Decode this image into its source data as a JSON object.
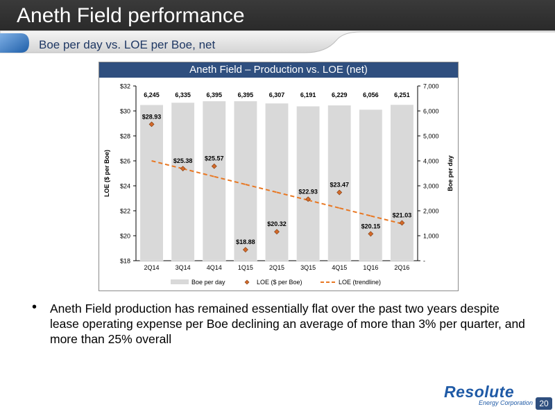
{
  "slide": {
    "title": "Aneth Field performance",
    "subtitle": "Boe per day vs. LOE per Boe, net",
    "bullet": "Aneth Field production has remained essentially flat over the past two years despite lease operating expense per Boe declining an average of more than 3% per quarter, and more than 25% overall",
    "logo": "Resolute",
    "logo_sub": "Energy Corporation",
    "page_number": "20",
    "colors": {
      "header": "#2e2e2e",
      "accent": "#2f4f7f",
      "bar": "#d9d9d9",
      "marker": "#d46a2a",
      "trend": "#e87722"
    }
  },
  "chart_data": {
    "type": "bar",
    "title": "Aneth Field – Production vs. LOE (net)",
    "categories": [
      "2Q14",
      "3Q14",
      "4Q14",
      "1Q15",
      "2Q15",
      "3Q15",
      "4Q15",
      "1Q16",
      "2Q16"
    ],
    "series": [
      {
        "name": "Boe per day",
        "type": "bar",
        "axis": "right",
        "values": [
          6245,
          6335,
          6395,
          6395,
          6307,
          6191,
          6229,
          6056,
          6251
        ],
        "labels": [
          "6,245",
          "6,335",
          "6,395",
          "6,395",
          "6,307",
          "6,191",
          "6,229",
          "6,056",
          "6,251"
        ]
      },
      {
        "name": "LOE ($ per Boe)",
        "type": "scatter",
        "axis": "left",
        "values": [
          28.93,
          25.38,
          25.57,
          18.88,
          20.32,
          22.93,
          23.47,
          20.15,
          21.03
        ],
        "labels": [
          "$28.93",
          "$25.38",
          "$25.57",
          "$18.88",
          "$20.32",
          "$22.93",
          "$23.47",
          "$20.15",
          "$21.03"
        ]
      },
      {
        "name": "LOE (trendline)",
        "type": "line",
        "axis": "left",
        "values": [
          26.0,
          25.37,
          24.74,
          24.11,
          23.48,
          22.85,
          22.22,
          21.59,
          20.96
        ]
      }
    ],
    "ylabel": "LOE ($ per Boe)",
    "ylabel_right": "Boe per day",
    "ylim": [
      18,
      32
    ],
    "ylim_right": [
      0,
      7000
    ],
    "yticks": [
      "$32",
      "$30",
      "$28",
      "$26",
      "$24",
      "$22",
      "$20",
      "$18"
    ],
    "yticks_right": [
      "7,000",
      "6,000",
      "5,000",
      "4,000",
      "3,000",
      "2,000",
      "1,000",
      "-"
    ],
    "grid": false,
    "legend_position": "bottom"
  }
}
